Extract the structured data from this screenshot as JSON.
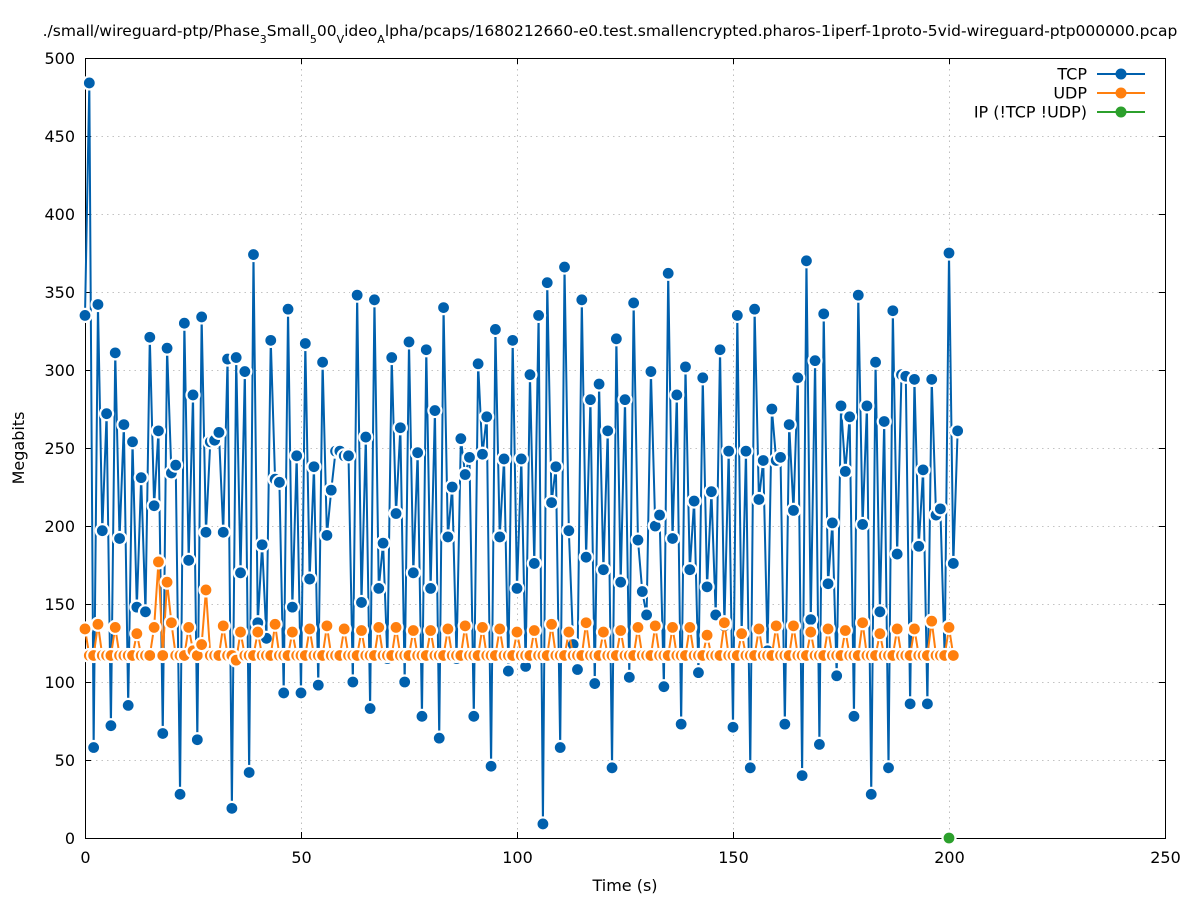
{
  "chart_data": {
    "type": "line",
    "title_parts": [
      {
        "text": "./small/wireguard-ptp/Phase",
        "sub": false
      },
      {
        "text": "3",
        "sub": true
      },
      {
        "text": "S",
        "sub": false
      },
      {
        "text": "mall",
        "sub": false
      },
      {
        "text": "5",
        "sub": true
      },
      {
        "text": "00",
        "sub": false
      },
      {
        "text": "V",
        "sub": true
      },
      {
        "text": "ideo",
        "sub": false
      },
      {
        "text": "A",
        "sub": true
      },
      {
        "text": "lpha/pcaps/1680212660-e0.test.smallencrypted.pharos-1iperf-1proto-5vid-wireguard-ptp000000.pcap",
        "sub": false
      }
    ],
    "xlabel": "Time (s)",
    "ylabel": "Megabits",
    "xlim": [
      0,
      250
    ],
    "ylim": [
      0,
      500
    ],
    "xticks": [
      0,
      50,
      100,
      150,
      200,
      250
    ],
    "yticks": [
      0,
      50,
      100,
      150,
      200,
      250,
      300,
      350,
      400,
      450,
      500
    ],
    "grid": true,
    "legend_position": "top-right",
    "colors": {
      "tcp": "#0060ad",
      "udp": "#ff7f0e",
      "ip": "#2ca02c",
      "grid": "#b0b0b0",
      "axis": "#000000"
    },
    "series": [
      {
        "name": "TCP",
        "key": "tcp",
        "x_start": 0,
        "x_step": 1,
        "values": [
          335,
          484,
          58,
          342,
          197,
          272,
          72,
          311,
          192,
          265,
          85,
          254,
          148,
          231,
          145,
          321,
          213,
          261,
          67,
          314,
          234,
          239,
          28,
          330,
          178,
          284,
          63,
          334,
          196,
          254,
          255,
          260,
          196,
          307,
          19,
          308,
          170,
          299,
          42,
          374,
          138,
          188,
          128,
          319,
          230,
          228,
          93,
          339,
          148,
          245,
          93,
          317,
          166,
          238,
          98,
          305,
          194,
          223,
          248,
          248,
          245,
          245,
          100,
          348,
          151,
          257,
          83,
          345,
          160,
          189,
          115,
          308,
          208,
          263,
          100,
          318,
          170,
          247,
          78,
          313,
          160,
          274,
          64,
          340,
          193,
          225,
          115,
          256,
          233,
          244,
          78,
          304,
          246,
          270,
          46,
          326,
          193,
          243,
          107,
          319,
          160,
          243,
          110,
          297,
          176,
          335,
          9,
          356,
          215,
          238,
          58,
          366,
          197,
          124,
          108,
          345,
          180,
          281,
          99,
          291,
          172,
          261,
          45,
          320,
          164,
          281,
          103,
          343,
          191,
          158,
          143,
          299,
          200,
          207,
          97,
          362,
          192,
          284,
          73,
          302,
          172,
          216,
          106,
          295,
          161,
          222,
          143,
          313,
          136,
          248,
          71,
          335,
          131,
          248,
          45,
          339,
          217,
          242,
          120,
          275,
          242,
          244,
          73,
          265,
          210,
          295,
          40,
          370,
          140,
          306,
          60,
          336,
          163,
          202,
          104,
          277,
          235,
          270,
          78,
          348,
          201,
          277,
          28,
          305,
          145,
          267,
          45,
          338,
          182,
          297,
          296,
          86,
          294,
          187,
          236,
          86,
          294,
          207,
          211,
          116,
          375,
          176,
          261
        ]
      },
      {
        "name": "UDP",
        "key": "udp",
        "x_start": 0,
        "x_step": 1,
        "values": [
          134,
          117,
          117,
          137,
          117,
          117,
          117,
          135,
          117,
          117,
          117,
          117,
          131,
          117,
          117,
          117,
          135,
          177,
          117,
          164,
          138,
          117,
          117,
          117,
          135,
          120,
          117,
          124,
          159,
          117,
          117,
          117,
          136,
          117,
          117,
          114,
          132,
          117,
          117,
          117,
          132,
          117,
          117,
          117,
          137,
          117,
          117,
          117,
          132,
          117,
          117,
          117,
          134,
          117,
          117,
          117,
          136,
          117,
          117,
          117,
          134,
          117,
          117,
          117,
          133,
          117,
          117,
          117,
          135,
          117,
          117,
          117,
          135,
          117,
          117,
          117,
          133,
          117,
          117,
          117,
          133,
          117,
          117,
          117,
          134,
          117,
          117,
          117,
          136,
          117,
          117,
          117,
          135,
          117,
          117,
          117,
          134,
          117,
          117,
          117,
          132,
          117,
          117,
          117,
          133,
          117,
          117,
          117,
          137,
          117,
          117,
          117,
          132,
          117,
          117,
          117,
          138,
          117,
          117,
          117,
          132,
          117,
          117,
          117,
          133,
          117,
          117,
          117,
          135,
          117,
          117,
          117,
          136,
          117,
          117,
          117,
          135,
          117,
          117,
          117,
          135,
          117,
          117,
          117,
          130,
          117,
          117,
          117,
          138,
          117,
          117,
          117,
          131,
          117,
          117,
          117,
          134,
          117,
          117,
          117,
          136,
          117,
          117,
          117,
          136,
          117,
          117,
          117,
          132,
          117,
          117,
          117,
          134,
          117,
          117,
          117,
          133,
          117,
          117,
          117,
          138,
          117,
          117,
          117,
          131,
          117,
          117,
          117,
          134,
          117,
          117,
          117,
          134,
          117,
          117,
          117,
          139,
          117,
          117,
          117,
          135,
          117
        ]
      },
      {
        "name": "IP (!TCP  !UDP)",
        "key": "ip",
        "x_start": 200,
        "x_step": 1,
        "values": [
          0
        ]
      }
    ]
  }
}
